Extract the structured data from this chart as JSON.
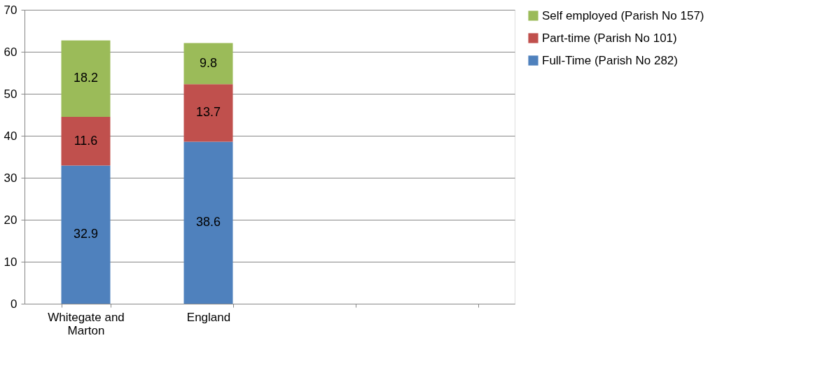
{
  "chart_data": {
    "type": "bar",
    "stacked": true,
    "categories": [
      "Whitegate and Marton",
      "England",
      null,
      null
    ],
    "series": [
      {
        "name": "Full-Time (Parish No 282)",
        "color": "#4f81bd",
        "values": [
          32.9,
          38.6,
          null,
          null
        ]
      },
      {
        "name": "Part-time (Parish No 101)",
        "color": "#c0504d",
        "values": [
          11.6,
          13.7,
          null,
          null
        ]
      },
      {
        "name": "Self employed (Parish No 157)",
        "color": "#9bbb59",
        "values": [
          18.2,
          9.8,
          null,
          null
        ]
      }
    ],
    "ylim": [
      0,
      70
    ],
    "yticks": [
      0,
      10,
      20,
      30,
      40,
      50,
      60,
      70
    ],
    "grid": "y",
    "legend": "right",
    "data_labels": true
  }
}
